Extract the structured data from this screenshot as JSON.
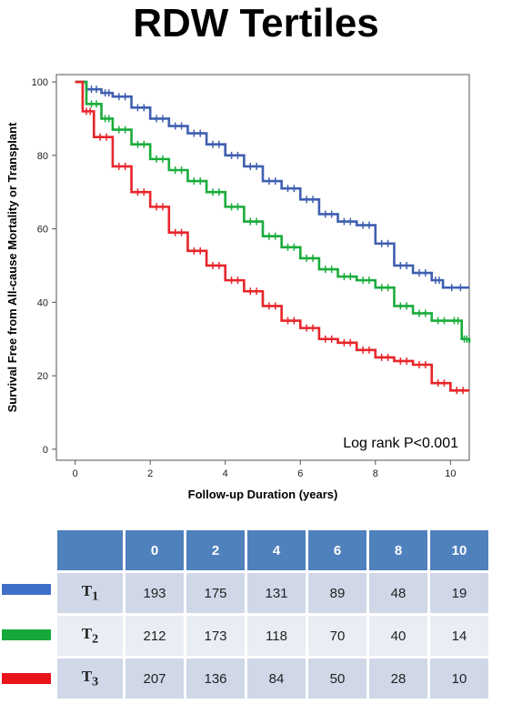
{
  "chart_data": {
    "type": "line",
    "title": "RDW Tertiles",
    "xlabel": "Follow-up Duration (years)",
    "ylabel": "Survival Free from All-cause Mortality or Transplant",
    "xlim": [
      -0.5,
      10.5
    ],
    "ylim": [
      -3,
      102
    ],
    "xticks": [
      0,
      2,
      4,
      6,
      8,
      10
    ],
    "yticks": [
      0,
      20,
      40,
      60,
      80,
      100
    ],
    "annotation": "Log rank P<0.001",
    "grid": false,
    "series": [
      {
        "name": "T1",
        "color": "#3f5fb0",
        "points": [
          [
            0,
            100
          ],
          [
            0.3,
            98
          ],
          [
            0.7,
            97
          ],
          [
            1,
            96
          ],
          [
            1.5,
            93
          ],
          [
            2,
            90
          ],
          [
            2.5,
            88
          ],
          [
            3,
            86
          ],
          [
            3.5,
            83
          ],
          [
            4,
            80
          ],
          [
            4.5,
            77
          ],
          [
            5,
            73
          ],
          [
            5.5,
            71
          ],
          [
            6,
            68
          ],
          [
            6.5,
            64
          ],
          [
            7,
            62
          ],
          [
            7.5,
            61
          ],
          [
            8,
            56
          ],
          [
            8.5,
            50
          ],
          [
            9,
            48
          ],
          [
            9.5,
            46
          ],
          [
            9.8,
            44
          ],
          [
            10.5,
            44
          ]
        ]
      },
      {
        "name": "T2",
        "color": "#1aac3c",
        "points": [
          [
            0,
            100
          ],
          [
            0.3,
            94
          ],
          [
            0.7,
            90
          ],
          [
            1,
            87
          ],
          [
            1.5,
            83
          ],
          [
            2,
            79
          ],
          [
            2.5,
            76
          ],
          [
            3,
            73
          ],
          [
            3.5,
            70
          ],
          [
            4,
            66
          ],
          [
            4.5,
            62
          ],
          [
            5,
            58
          ],
          [
            5.5,
            55
          ],
          [
            6,
            52
          ],
          [
            6.5,
            49
          ],
          [
            7,
            47
          ],
          [
            7.5,
            46
          ],
          [
            8,
            44
          ],
          [
            8.5,
            39
          ],
          [
            9,
            37
          ],
          [
            9.5,
            35
          ],
          [
            10,
            35
          ],
          [
            10.3,
            30
          ],
          [
            10.5,
            29
          ]
        ]
      },
      {
        "name": "T3",
        "color": "#e8252a",
        "points": [
          [
            0,
            100
          ],
          [
            0.2,
            92
          ],
          [
            0.5,
            85
          ],
          [
            1,
            77
          ],
          [
            1.5,
            70
          ],
          [
            2,
            66
          ],
          [
            2.5,
            59
          ],
          [
            3,
            54
          ],
          [
            3.5,
            50
          ],
          [
            4,
            46
          ],
          [
            4.5,
            43
          ],
          [
            5,
            39
          ],
          [
            5.5,
            35
          ],
          [
            6,
            33
          ],
          [
            6.5,
            30
          ],
          [
            7,
            29
          ],
          [
            7.5,
            27
          ],
          [
            8,
            25
          ],
          [
            8.5,
            24
          ],
          [
            9,
            23
          ],
          [
            9.5,
            18
          ],
          [
            10,
            16
          ],
          [
            10.5,
            16
          ]
        ]
      }
    ]
  },
  "table": {
    "header": [
      "",
      "0",
      "2",
      "4",
      "6",
      "8",
      "10"
    ],
    "rows": [
      {
        "group": "T",
        "sub": "1",
        "color": "#3f6fc8",
        "values": [
          "193",
          "175",
          "131",
          "89",
          "48",
          "19"
        ]
      },
      {
        "group": "T",
        "sub": "2",
        "color": "#16a83a",
        "values": [
          "212",
          "173",
          "118",
          "70",
          "40",
          "14"
        ]
      },
      {
        "group": "T",
        "sub": "3",
        "color": "#e8141a",
        "values": [
          "207",
          "136",
          "84",
          "50",
          "28",
          "10"
        ]
      }
    ]
  }
}
